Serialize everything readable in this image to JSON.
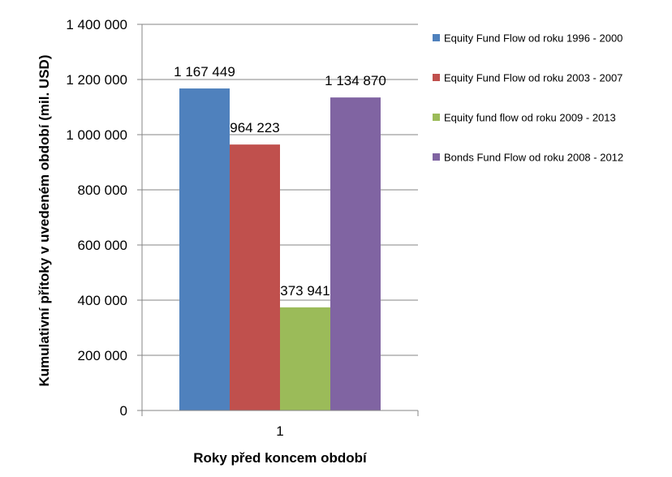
{
  "chart_data": {
    "type": "bar",
    "title": "",
    "xlabel": "Roky před koncem období",
    "ylabel": "Kumulativní přítoky  v uvedeném období (mil. USD)",
    "categories": [
      "1"
    ],
    "ylim": [
      0,
      1400000
    ],
    "yticks": [
      0,
      200000,
      400000,
      600000,
      800000,
      1000000,
      1200000,
      1400000
    ],
    "ytick_labels": [
      "0",
      "200 000",
      "400 000",
      "600 000",
      "800 000",
      "1 000 000",
      "1 200 000",
      "1 400 000"
    ],
    "grid": true,
    "legend_position": "right",
    "series": [
      {
        "name": "Equity Fund Flow od roku 1996 - 2000",
        "values": [
          1167449
        ],
        "label": "1 167 449",
        "color": "#4F81BD"
      },
      {
        "name": "Equity Fund Flow od roku 2003 - 2007",
        "values": [
          964223
        ],
        "label": "964 223",
        "color": "#C0504D"
      },
      {
        "name": "Equity fund flow od roku 2009 - 2013",
        "values": [
          373941
        ],
        "label": "373 941",
        "color": "#9BBB59"
      },
      {
        "name": "Bonds Fund Flow od roku 2008 - 2012",
        "values": [
          1134870
        ],
        "label": "1 134 870",
        "color": "#8064A2"
      }
    ]
  }
}
